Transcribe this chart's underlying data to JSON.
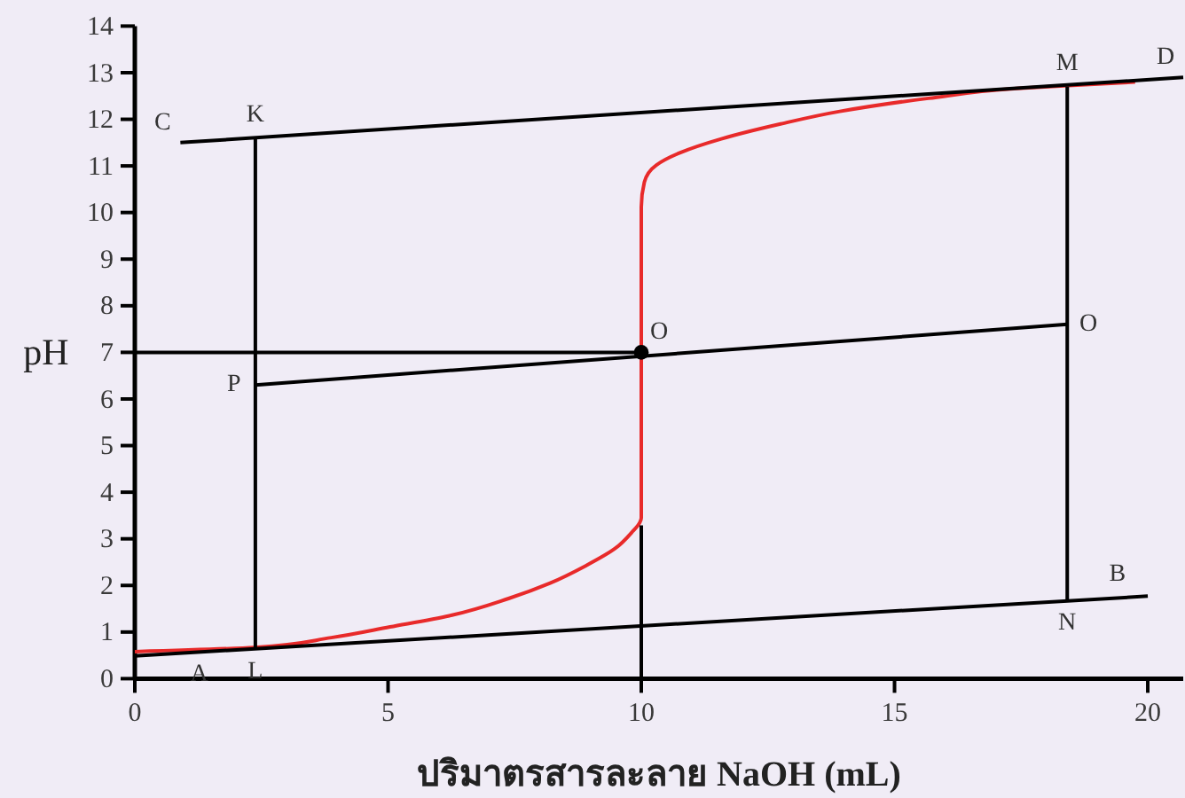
{
  "chart_data": {
    "type": "line",
    "xlabel": "ปริมาตรสารละลาย NaOH (mL)",
    "ylabel": "pH",
    "xlim": [
      0,
      20.7
    ],
    "ylim": [
      0,
      14
    ],
    "xticks": [
      0,
      5,
      10,
      15,
      20
    ],
    "yticks": [
      0,
      1,
      2,
      3,
      4,
      5,
      6,
      7,
      8,
      9,
      10,
      11,
      12,
      13,
      14
    ],
    "series": [
      {
        "color": "#e82a2a",
        "x": [
          0,
          2.36,
          3.88,
          5.04,
          6.21,
          7.38,
          8.2,
          8.9,
          9.48,
          9.83,
          9.97,
          10,
          10,
          10.06,
          10.3,
          10.76,
          11.58,
          12.75,
          13.92,
          15.67,
          17.42,
          18.35,
          19.75
        ],
        "values": [
          0.58,
          0.67,
          0.88,
          1.11,
          1.35,
          1.72,
          2.05,
          2.42,
          2.79,
          3.16,
          3.35,
          3.45,
          10.12,
          10.65,
          11.02,
          11.28,
          11.58,
          11.9,
          12.17,
          12.45,
          12.66,
          12.72,
          12.8
        ]
      },
      {
        "color": "#000000",
        "x": [
          0.9,
          20.7
        ],
        "values": [
          11.5,
          12.9
        ]
      },
      {
        "color": "#000000",
        "x": [
          0,
          20
        ],
        "values": [
          0.49,
          1.77
        ]
      },
      {
        "color": "#000000",
        "x": [
          2.38,
          2.38
        ],
        "values": [
          11.6,
          0.64
        ]
      },
      {
        "color": "#000000",
        "x": [
          18.41,
          18.41
        ],
        "values": [
          12.7,
          1.68
        ]
      },
      {
        "color": "#000000",
        "x": [
          2.38,
          18.41
        ],
        "values": [
          6.3,
          7.6
        ]
      },
      {
        "color": "#000000",
        "x": [
          0,
          10
        ],
        "values": [
          7,
          7
        ]
      },
      {
        "color": "#000000",
        "x": [
          10,
          10
        ],
        "values": [
          3.29,
          0
        ]
      },
      {
        "type": "scatter",
        "color": "#000000",
        "marker": "circle",
        "x": [
          10
        ],
        "values": [
          7
        ]
      }
    ],
    "annotations": [
      {
        "text": "C",
        "x": 0.9,
        "y": 11.5
      },
      {
        "text": "K",
        "x": 2.38,
        "y": 11.6
      },
      {
        "text": "P",
        "x": 2.38,
        "y": 6.3
      },
      {
        "text": "A",
        "x": 1.27,
        "y": 0.57
      },
      {
        "text": "L",
        "x": 2.38,
        "y": 0.64
      },
      {
        "text": "O",
        "x": 10,
        "y": 7
      },
      {
        "text": "M",
        "x": 18.41,
        "y": 12.7
      },
      {
        "text": "D",
        "x": 20.7,
        "y": 12.9
      },
      {
        "text": "N",
        "x": 18.41,
        "y": 1.68
      },
      {
        "text": "B",
        "x": 19.4,
        "y": 1.73
      },
      {
        "text": "O",
        "x": 18.41,
        "y": 7.6
      }
    ]
  }
}
